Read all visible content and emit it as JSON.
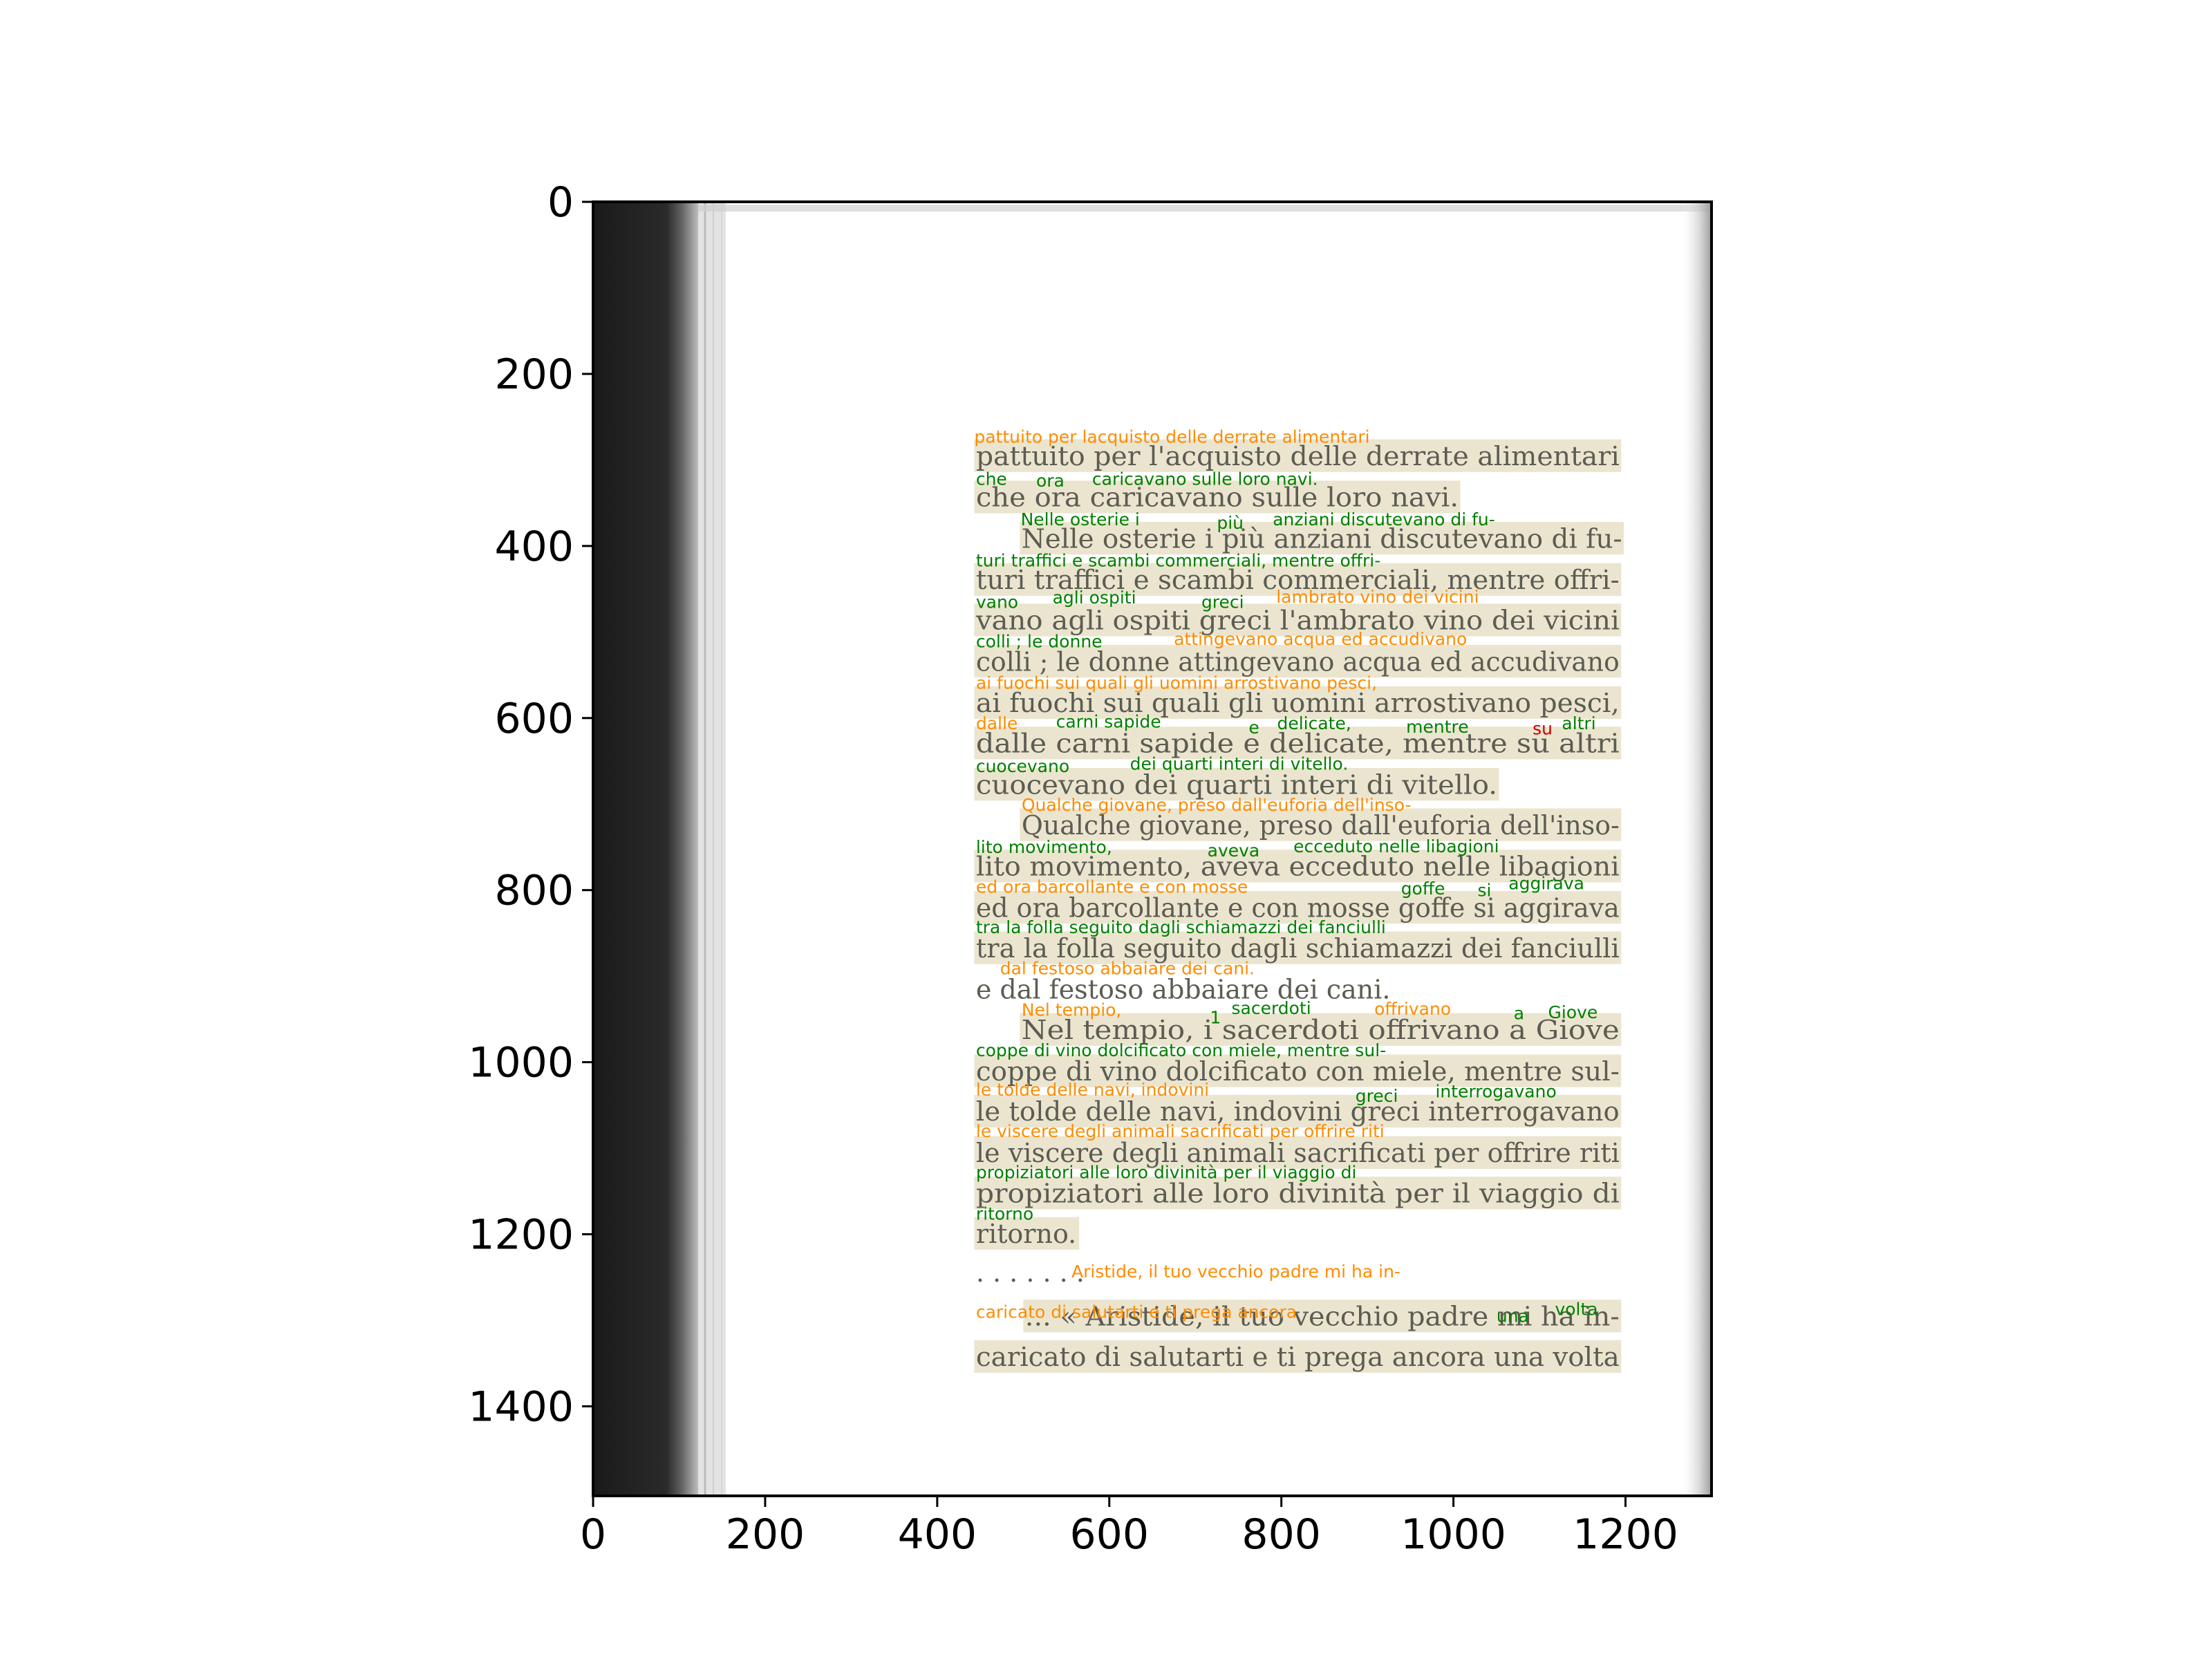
{
  "axes": {
    "x_ticks": [
      "0",
      "200",
      "400",
      "600",
      "800",
      "1000",
      "1200"
    ],
    "y_ticks": [
      "0",
      "200",
      "400",
      "600",
      "800",
      "1000",
      "1200",
      "1400"
    ]
  },
  "colors": {
    "high_confidence": "#008000",
    "medium_confidence": "#ff8c00",
    "low_confidence": "#cc0000",
    "line_box": "#e7e1c8"
  },
  "page_lines": [
    "pattuito per l'acquisto delle derrate alimentari",
    "che ora caricavano sulle loro navi.",
    "Nelle osterie i più anziani discutevano di fu-",
    "turi traffici e scambi commerciali, mentre offri-",
    "vano agli ospiti greci l'ambrato vino dei vicini",
    "colli ; le donne attingevano acqua ed accudivano",
    "ai fuochi sui quali gli uomini arrostivano pesci,",
    "dalle carni sapide e delicate, mentre su altri",
    "cuocevano dei quarti interi di vitello.",
    "Qualche giovane, preso dall'euforia dell'inso-",
    "lito movimento, aveva ecceduto nelle libagioni",
    "ed ora barcollante e con mosse goffe si aggirava",
    "tra la folla seguito dagli schiamazzi dei fanciulli",
    "e dal festoso abbaiare dei cani.",
    "Nel tempio, i sacerdoti offrivano a Giove",
    "coppe di vino dolcificato con miele, mentre sul-",
    "le tolde delle navi, indovini greci interrogavano",
    "le viscere degli animali sacrificati per offrire riti",
    "propiziatori alle loro divinità per il viaggio di",
    "ritorno.",
    ". . . . . . .",
    "... « Aristide, il tuo vecchio padre mi ha in-",
    "caricato di salutarti e ti prega ancora una volta"
  ],
  "ocr_labels": [
    {
      "text": "pattuito per lacquisto delle derrate alimentari",
      "conf": "medium"
    },
    {
      "text": "che",
      "conf": "high"
    },
    {
      "text": "ora",
      "conf": "high"
    },
    {
      "text": "caricavano sulle loro navi.",
      "conf": "high"
    },
    {
      "text": "Nelle osterie i",
      "conf": "high"
    },
    {
      "text": "più",
      "conf": "high"
    },
    {
      "text": "anziani discutevano di fu-",
      "conf": "high"
    },
    {
      "text": "turi traffici e scambi commerciali, mentre offri-",
      "conf": "high"
    },
    {
      "text": "vano",
      "conf": "high"
    },
    {
      "text": "agli ospiti",
      "conf": "high"
    },
    {
      "text": "greci",
      "conf": "high"
    },
    {
      "text": "lambrato vino dei vicini",
      "conf": "medium"
    },
    {
      "text": "colli ; le donne",
      "conf": "high"
    },
    {
      "text": "attingevano acqua ed accudivano",
      "conf": "medium"
    },
    {
      "text": "ai fuochi sui quali gli uomini arrostivano pesci,",
      "conf": "medium"
    },
    {
      "text": "dalle",
      "conf": "medium"
    },
    {
      "text": "carni sapide",
      "conf": "high"
    },
    {
      "text": "e",
      "conf": "high"
    },
    {
      "text": "delicate,",
      "conf": "high"
    },
    {
      "text": "mentre",
      "conf": "high"
    },
    {
      "text": "su",
      "conf": "low"
    },
    {
      "text": "altri",
      "conf": "high"
    },
    {
      "text": "dei quarti interi di vitello.",
      "conf": "high"
    },
    {
      "text": "cuocevano",
      "conf": "high"
    },
    {
      "text": "Qualche giovane, preso dall'euforia dell'inso-",
      "conf": "medium"
    },
    {
      "text": "lito movimento,",
      "conf": "high"
    },
    {
      "text": "aveva",
      "conf": "high"
    },
    {
      "text": "ecceduto nelle libagioni",
      "conf": "high"
    },
    {
      "text": "ed ora barcollante e con mosse",
      "conf": "medium"
    },
    {
      "text": "goffe",
      "conf": "high"
    },
    {
      "text": "si",
      "conf": "high"
    },
    {
      "text": "aggirava",
      "conf": "high"
    },
    {
      "text": "tra la folla seguito dagli schiamazzi dei fanciulli",
      "conf": "high"
    },
    {
      "text": "dal festoso abbaiare dei cani.",
      "conf": "medium"
    },
    {
      "text": "Nel  tempio,",
      "conf": "medium"
    },
    {
      "text": "sacerdoti",
      "conf": "high"
    },
    {
      "text": "offrivano",
      "conf": "medium"
    },
    {
      "text": "a",
      "conf": "high"
    },
    {
      "text": "Giove",
      "conf": "high"
    },
    {
      "text": "1",
      "conf": "high"
    },
    {
      "text": "coppe di vino dolcificato con miele, mentre sul-",
      "conf": "high"
    },
    {
      "text": "le tolde delle navi, indovini",
      "conf": "medium"
    },
    {
      "text": "greci",
      "conf": "high"
    },
    {
      "text": "interrogavano",
      "conf": "high"
    },
    {
      "text": "le viscere degli animali sacrificati per offrire riti",
      "conf": "medium"
    },
    {
      "text": "propiziatori alle loro divinità per il viaggio di",
      "conf": "high"
    },
    {
      "text": "ritorno",
      "conf": "high"
    },
    {
      "text": "Aristide, il tuo vecchio padre mi ha in-",
      "conf": "medium"
    },
    {
      "text": "caricato di salutarti e ti prega ancora",
      "conf": "medium"
    },
    {
      "text": "una",
      "conf": "high"
    },
    {
      "text": "volta",
      "conf": "high"
    }
  ]
}
